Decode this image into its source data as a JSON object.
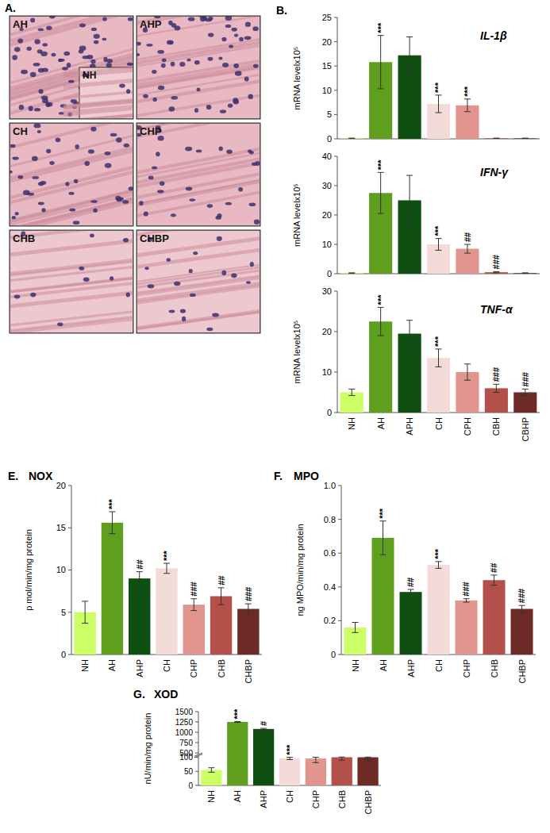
{
  "image_panel": {
    "label": "A.",
    "tiles": [
      "AH",
      "AHP",
      "CH",
      "CHP",
      "CHB",
      "CHBP"
    ],
    "inset": "NH"
  },
  "chart_data": [
    {
      "type": "bar",
      "panel": "B.",
      "title": "IL-1β",
      "y_label": "mRNA levelx10⁵",
      "categories": [
        null,
        null,
        null,
        null,
        null,
        null,
        null
      ],
      "values": [
        0.1,
        15.8,
        17.2,
        7.2,
        6.9,
        0.1,
        0.1
      ],
      "errors": [
        0.05,
        5.5,
        3.8,
        1.8,
        1.3,
        0.05,
        0.05
      ],
      "annotations": [
        null,
        "***",
        null,
        "***",
        "***",
        null,
        null
      ],
      "colors": [
        "#ccff66",
        "#5ea01e",
        "#0f4f12",
        "#f3dcd8",
        "#e2948e",
        "#b3504a",
        "#6e2a25"
      ],
      "ylim": [
        0,
        25
      ],
      "yticks": [
        0,
        5,
        10,
        15,
        20,
        25
      ],
      "grid": false,
      "tick_labels": "y"
    },
    {
      "type": "bar",
      "title": "IFN-γ",
      "y_label": "mRNA levelx10⁵",
      "categories": [
        null,
        null,
        null,
        null,
        null,
        null,
        null
      ],
      "values": [
        0.2,
        27.5,
        25,
        10,
        8.5,
        0.5,
        0.2
      ],
      "errors": [
        0.1,
        7,
        8.5,
        2,
        1.5,
        0.2,
        0.1
      ],
      "annotations": [
        null,
        "***",
        null,
        "***",
        "##",
        "###",
        null
      ],
      "colors": [
        "#ccff66",
        "#5ea01e",
        "#0f4f12",
        "#f3dcd8",
        "#e2948e",
        "#b3504a",
        "#6e2a25"
      ],
      "ylim": [
        0,
        40
      ],
      "yticks": [
        0,
        10,
        20,
        30,
        40
      ],
      "grid": false,
      "tick_labels": "y"
    },
    {
      "type": "bar",
      "title": "TNF-α",
      "y_label": "mRNA levelx10⁵",
      "categories": [
        "NH",
        "AH",
        "APH",
        "CH",
        "CPH",
        "CBH",
        "CBHP"
      ],
      "values": [
        5,
        22.5,
        19.5,
        13.5,
        10,
        6,
        5
      ],
      "errors": [
        0.8,
        3.5,
        3.3,
        2.2,
        2,
        1,
        0.8
      ],
      "annotations": [
        null,
        "***",
        null,
        "***",
        null,
        "###",
        "###"
      ],
      "colors": [
        "#ccff66",
        "#5ea01e",
        "#0f4f12",
        "#f3dcd8",
        "#e2948e",
        "#b3504a",
        "#6e2a25"
      ],
      "ylim": [
        0,
        30
      ],
      "yticks": [
        0,
        10,
        20,
        30
      ],
      "grid": false,
      "tick_labels": true
    },
    {
      "type": "bar",
      "panel": "E.",
      "title": "NOX",
      "y_label": "p mol/min/mg protein",
      "categories": [
        "NH",
        "AH",
        "AHP",
        "CH",
        "CHP",
        "CHB",
        "CHBP"
      ],
      "values": [
        5,
        15.6,
        9,
        10.2,
        5.9,
        6.9,
        5.4
      ],
      "errors": [
        1.3,
        1.3,
        0.8,
        0.6,
        0.7,
        1,
        0.6
      ],
      "annotations": [
        null,
        "***",
        "##",
        "***",
        "###",
        "##",
        "###"
      ],
      "colors": [
        "#ccff66",
        "#5ea01e",
        "#0f4f12",
        "#f3dcd8",
        "#e2948e",
        "#b3504a",
        "#6e2a25"
      ],
      "ylim": [
        0,
        20
      ],
      "yticks": [
        0,
        5,
        10,
        15,
        20
      ],
      "grid": false,
      "tick_labels": true
    },
    {
      "type": "bar",
      "panel": "F.",
      "title": "MPO",
      "y_label": "ng MPO/min/mg protein",
      "categories": [
        "NH",
        "AH",
        "AHP",
        "CH",
        "CHP",
        "CHB",
        "CHBP"
      ],
      "values": [
        0.16,
        0.69,
        0.37,
        0.53,
        0.32,
        0.44,
        0.27
      ],
      "errors": [
        0.03,
        0.1,
        0.015,
        0.02,
        0.01,
        0.03,
        0.02
      ],
      "annotations": [
        null,
        "***",
        "##",
        "***",
        "###",
        "##",
        "###"
      ],
      "colors": [
        "#ccff66",
        "#5ea01e",
        "#0f4f12",
        "#f3dcd8",
        "#e2948e",
        "#b3504a",
        "#6e2a25"
      ],
      "ylim": [
        0,
        1
      ],
      "yticks": [
        0,
        0.2,
        0.4,
        0.6,
        0.8,
        {
          "value": 1,
          "label": "1.0"
        }
      ],
      "grid": false,
      "tick_labels": true
    },
    {
      "type": "bar",
      "panel": "G.",
      "title": "XOD",
      "y_label": "nU/min/mg protein",
      "categories": [
        "NH",
        "AH",
        "AHP",
        "CH",
        "CHP",
        "CHB",
        "CHBP"
      ],
      "values": [
        55,
        1250,
        1080,
        97,
        96,
        110,
        110
      ],
      "errors": [
        8,
        10,
        15,
        5,
        15,
        20,
        20
      ],
      "annotations": [
        null,
        "***",
        "#",
        "***",
        null,
        null,
        null
      ],
      "colors": [
        "#ccff66",
        "#5ea01e",
        "#0f4f12",
        "#f3dcd8",
        "#e2948e",
        "#b3504a",
        "#6e2a25"
      ],
      "ylim": [
        0,
        1500
      ],
      "axis_break": [
        100,
        500
      ],
      "yticks": [
        0,
        50,
        100,
        500,
        750,
        1000,
        1250,
        1500
      ],
      "grid": false,
      "tick_labels": true
    }
  ]
}
